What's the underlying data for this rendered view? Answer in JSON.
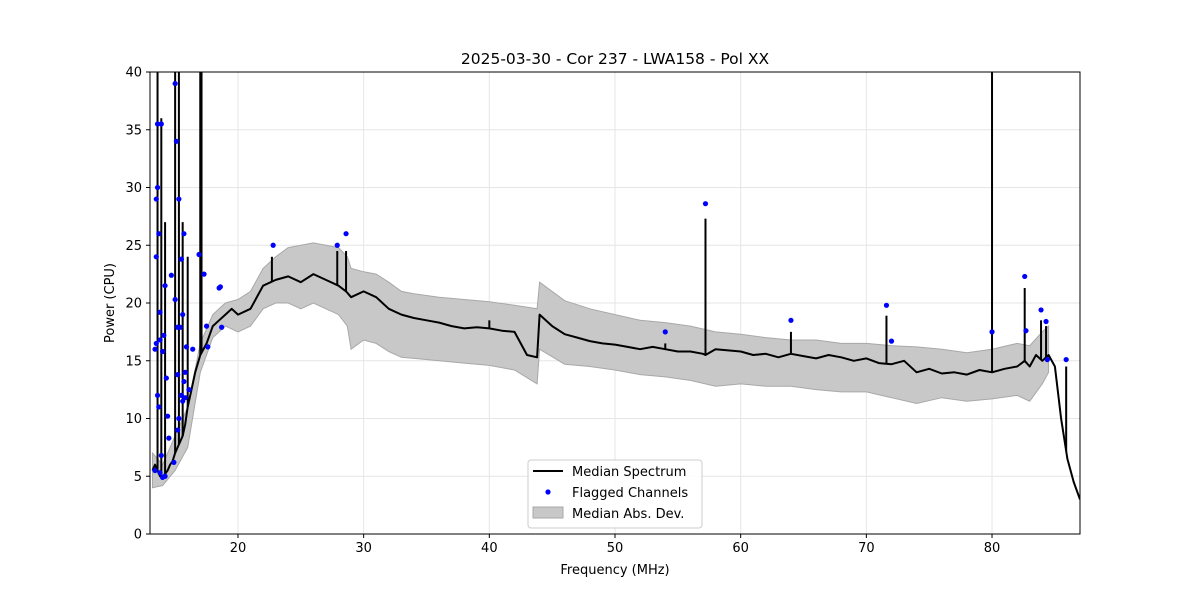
{
  "chart_data": {
    "type": "line",
    "title": "2025-03-30 - Cor 237 - LWA158 - Pol XX",
    "xlabel": "Frequency (MHz)",
    "ylabel": "Power (CPU)",
    "xlim": [
      13.0,
      87.0
    ],
    "ylim": [
      0,
      40
    ],
    "xticks": [
      20,
      30,
      40,
      50,
      60,
      70,
      80
    ],
    "yticks": [
      0,
      5,
      10,
      15,
      20,
      25,
      30,
      35,
      40
    ],
    "grid": true,
    "legend_position": "bottom-center",
    "legend": [
      "Median Spectrum",
      "Flagged Channels",
      "Median Abs. Dev."
    ],
    "colors": {
      "median": "#000000",
      "flagged": "#0000ff",
      "band_fill": "#c8c8c8",
      "band_edge": "#a8a8a8",
      "grid": "#e6e6e6"
    },
    "median_spectrum": {
      "x": [
        13.2,
        13.4,
        13.6,
        13.8,
        14.0,
        14.2,
        14.4,
        14.6,
        14.8,
        15.0,
        15.2,
        15.4,
        15.6,
        15.8,
        16.0,
        16.3,
        16.6,
        17.0,
        17.5,
        18.0,
        18.5,
        19.0,
        19.5,
        20.0,
        21.0,
        22.0,
        23.0,
        24.0,
        25.0,
        26.0,
        27.0,
        28.0,
        28.6,
        29.0,
        30.0,
        31.0,
        32.0,
        33.0,
        34.0,
        35.0,
        36.0,
        37.0,
        38.0,
        39.0,
        40.0,
        41.0,
        42.0,
        43.0,
        43.8,
        44.0,
        45.0,
        46.0,
        47.0,
        48.0,
        49.0,
        50.0,
        51.0,
        52.0,
        53.0,
        54.0,
        55.0,
        56.0,
        57.0,
        57.2,
        58.0,
        59.0,
        60.0,
        61.0,
        62.0,
        63.0,
        64.0,
        65.0,
        66.0,
        67.0,
        68.0,
        69.0,
        70.0,
        71.0,
        72.0,
        73.0,
        74.0,
        75.0,
        76.0,
        77.0,
        78.0,
        79.0,
        80.0,
        81.0,
        82.0,
        82.6,
        83.0,
        83.5,
        84.0,
        84.5,
        85.0,
        85.5,
        86.0,
        86.5,
        87.0
      ],
      "y": [
        5.5,
        6.0,
        5.5,
        5.0,
        5.0,
        5.2,
        5.5,
        6.0,
        6.3,
        7.0,
        7.5,
        8.0,
        8.5,
        9.5,
        11.0,
        12.5,
        14.0,
        15.5,
        16.5,
        18.0,
        18.5,
        19.0,
        19.5,
        19.0,
        19.5,
        21.5,
        22.0,
        22.3,
        21.8,
        22.5,
        22.0,
        21.5,
        21.0,
        20.5,
        21.0,
        20.5,
        19.5,
        19.0,
        18.7,
        18.5,
        18.3,
        18.0,
        17.8,
        17.9,
        17.8,
        17.6,
        17.5,
        15.5,
        15.3,
        19.0,
        18.0,
        17.3,
        17.0,
        16.7,
        16.5,
        16.4,
        16.2,
        16.0,
        16.2,
        16.0,
        15.8,
        15.8,
        15.6,
        15.5,
        16.0,
        15.9,
        15.8,
        15.5,
        15.6,
        15.3,
        15.6,
        15.4,
        15.2,
        15.5,
        15.3,
        15.0,
        15.2,
        14.8,
        14.7,
        15.0,
        14.0,
        14.3,
        13.9,
        14.0,
        13.8,
        14.2,
        14.0,
        14.3,
        14.5,
        15.0,
        14.5,
        15.5,
        15.0,
        15.5,
        14.5,
        10.0,
        6.5,
        4.5,
        3.0
      ],
      "spikes": [
        {
          "x": 13.6,
          "y": 40
        },
        {
          "x": 13.9,
          "y": 36
        },
        {
          "x": 14.2,
          "y": 27
        },
        {
          "x": 15.0,
          "y": 40
        },
        {
          "x": 15.3,
          "y": 40
        },
        {
          "x": 15.6,
          "y": 27
        },
        {
          "x": 16.0,
          "y": 24
        },
        {
          "x": 17.0,
          "y": 40
        },
        {
          "x": 17.1,
          "y": 40
        },
        {
          "x": 22.7,
          "y": 24
        },
        {
          "x": 27.9,
          "y": 24.5
        },
        {
          "x": 28.6,
          "y": 24.5
        },
        {
          "x": 40.0,
          "y": 18.5
        },
        {
          "x": 54.0,
          "y": 16.5
        },
        {
          "x": 57.2,
          "y": 27.3
        },
        {
          "x": 64.0,
          "y": 17.5
        },
        {
          "x": 71.6,
          "y": 18.9
        },
        {
          "x": 80.0,
          "y": 40
        },
        {
          "x": 82.6,
          "y": 21.3
        },
        {
          "x": 83.9,
          "y": 18.5
        },
        {
          "x": 84.3,
          "y": 18.0
        },
        {
          "x": 85.9,
          "y": 14.5
        }
      ]
    },
    "mad_band": {
      "x": [
        13.2,
        14.0,
        15.0,
        16.0,
        17.0,
        18.0,
        19.0,
        20.0,
        21.0,
        22.0,
        23.0,
        24.0,
        25.0,
        26.0,
        27.0,
        28.0,
        28.7,
        29.0,
        30.0,
        31.0,
        32.0,
        33.0,
        34.0,
        36.0,
        38.0,
        40.0,
        42.0,
        43.8,
        44.0,
        46.0,
        48.0,
        50.0,
        52.0,
        54.0,
        56.0,
        58.0,
        60.0,
        62.0,
        64.0,
        66.0,
        68.0,
        70.0,
        72.0,
        74.0,
        76.0,
        78.0,
        80.0,
        82.0,
        83.0,
        84.0,
        84.5
      ],
      "upper": [
        7.0,
        6.0,
        8.5,
        11.0,
        16.5,
        19.0,
        20.0,
        20.3,
        21.0,
        23.0,
        24.0,
        24.8,
        25.0,
        25.2,
        25.0,
        24.8,
        24.0,
        23.0,
        22.7,
        22.5,
        21.8,
        21.0,
        20.8,
        20.5,
        20.3,
        20.1,
        19.8,
        19.5,
        21.8,
        20.2,
        19.5,
        19.0,
        18.5,
        18.3,
        18.0,
        17.5,
        17.3,
        17.0,
        16.8,
        16.8,
        16.5,
        16.5,
        16.3,
        16.2,
        16.0,
        15.7,
        16.0,
        16.5,
        16.3,
        17.5,
        18.0
      ],
      "lower": [
        4.0,
        4.2,
        5.5,
        7.5,
        14.0,
        17.0,
        18.0,
        17.5,
        18.0,
        19.5,
        20.0,
        20.0,
        19.5,
        20.0,
        19.5,
        19.0,
        18.0,
        16.0,
        16.8,
        16.5,
        15.8,
        15.3,
        15.2,
        15.0,
        14.8,
        14.6,
        14.2,
        13.0,
        16.0,
        14.7,
        14.5,
        14.2,
        13.8,
        13.6,
        13.3,
        12.8,
        13.0,
        12.8,
        12.8,
        12.5,
        12.3,
        12.3,
        11.8,
        11.3,
        11.8,
        11.5,
        11.7,
        12.0,
        11.5,
        13.0,
        14.0
      ]
    },
    "flagged_channels": {
      "x": [
        13.4,
        13.4,
        13.5,
        13.5,
        13.5,
        13.6,
        13.6,
        13.6,
        13.7,
        13.7,
        13.8,
        13.8,
        13.8,
        13.9,
        13.9,
        14.0,
        14.0,
        14.1,
        14.2,
        14.2,
        14.3,
        14.4,
        14.5,
        14.7,
        14.9,
        15.0,
        15.0,
        15.1,
        15.2,
        15.2,
        15.2,
        15.3,
        15.3,
        15.4,
        15.5,
        15.5,
        15.6,
        15.6,
        15.7,
        15.7,
        15.8,
        15.8,
        15.9,
        16.1,
        16.4,
        16.9,
        17.3,
        17.5,
        17.6,
        18.5,
        18.6,
        18.7,
        22.8,
        27.9,
        28.6,
        54.0,
        57.2,
        64.0,
        71.6,
        72.0,
        80.0,
        82.6,
        82.7,
        83.9,
        84.3,
        84.4,
        85.9
      ],
      "y": [
        5.5,
        16.0,
        29.0,
        24.0,
        16.5,
        35.5,
        30.0,
        12.0,
        26.0,
        11.0,
        16.8,
        19.2,
        5.3,
        35.5,
        6.8,
        4.9,
        15.8,
        17.2,
        21.5,
        5.0,
        13.5,
        10.2,
        8.3,
        22.4,
        6.2,
        39.0,
        20.3,
        34.0,
        17.9,
        13.8,
        9.0,
        29.0,
        10.0,
        17.9,
        23.8,
        12.0,
        19.0,
        11.5,
        26.0,
        13.2,
        14.0,
        11.8,
        16.2,
        12.5,
        16.0,
        24.2,
        22.5,
        18.0,
        16.2,
        21.3,
        21.4,
        17.9,
        25.0,
        25.0,
        26.0,
        17.5,
        28.6,
        18.5,
        19.8,
        16.7,
        17.5,
        22.3,
        17.6,
        19.4,
        18.4,
        15.1,
        15.1
      ]
    }
  }
}
